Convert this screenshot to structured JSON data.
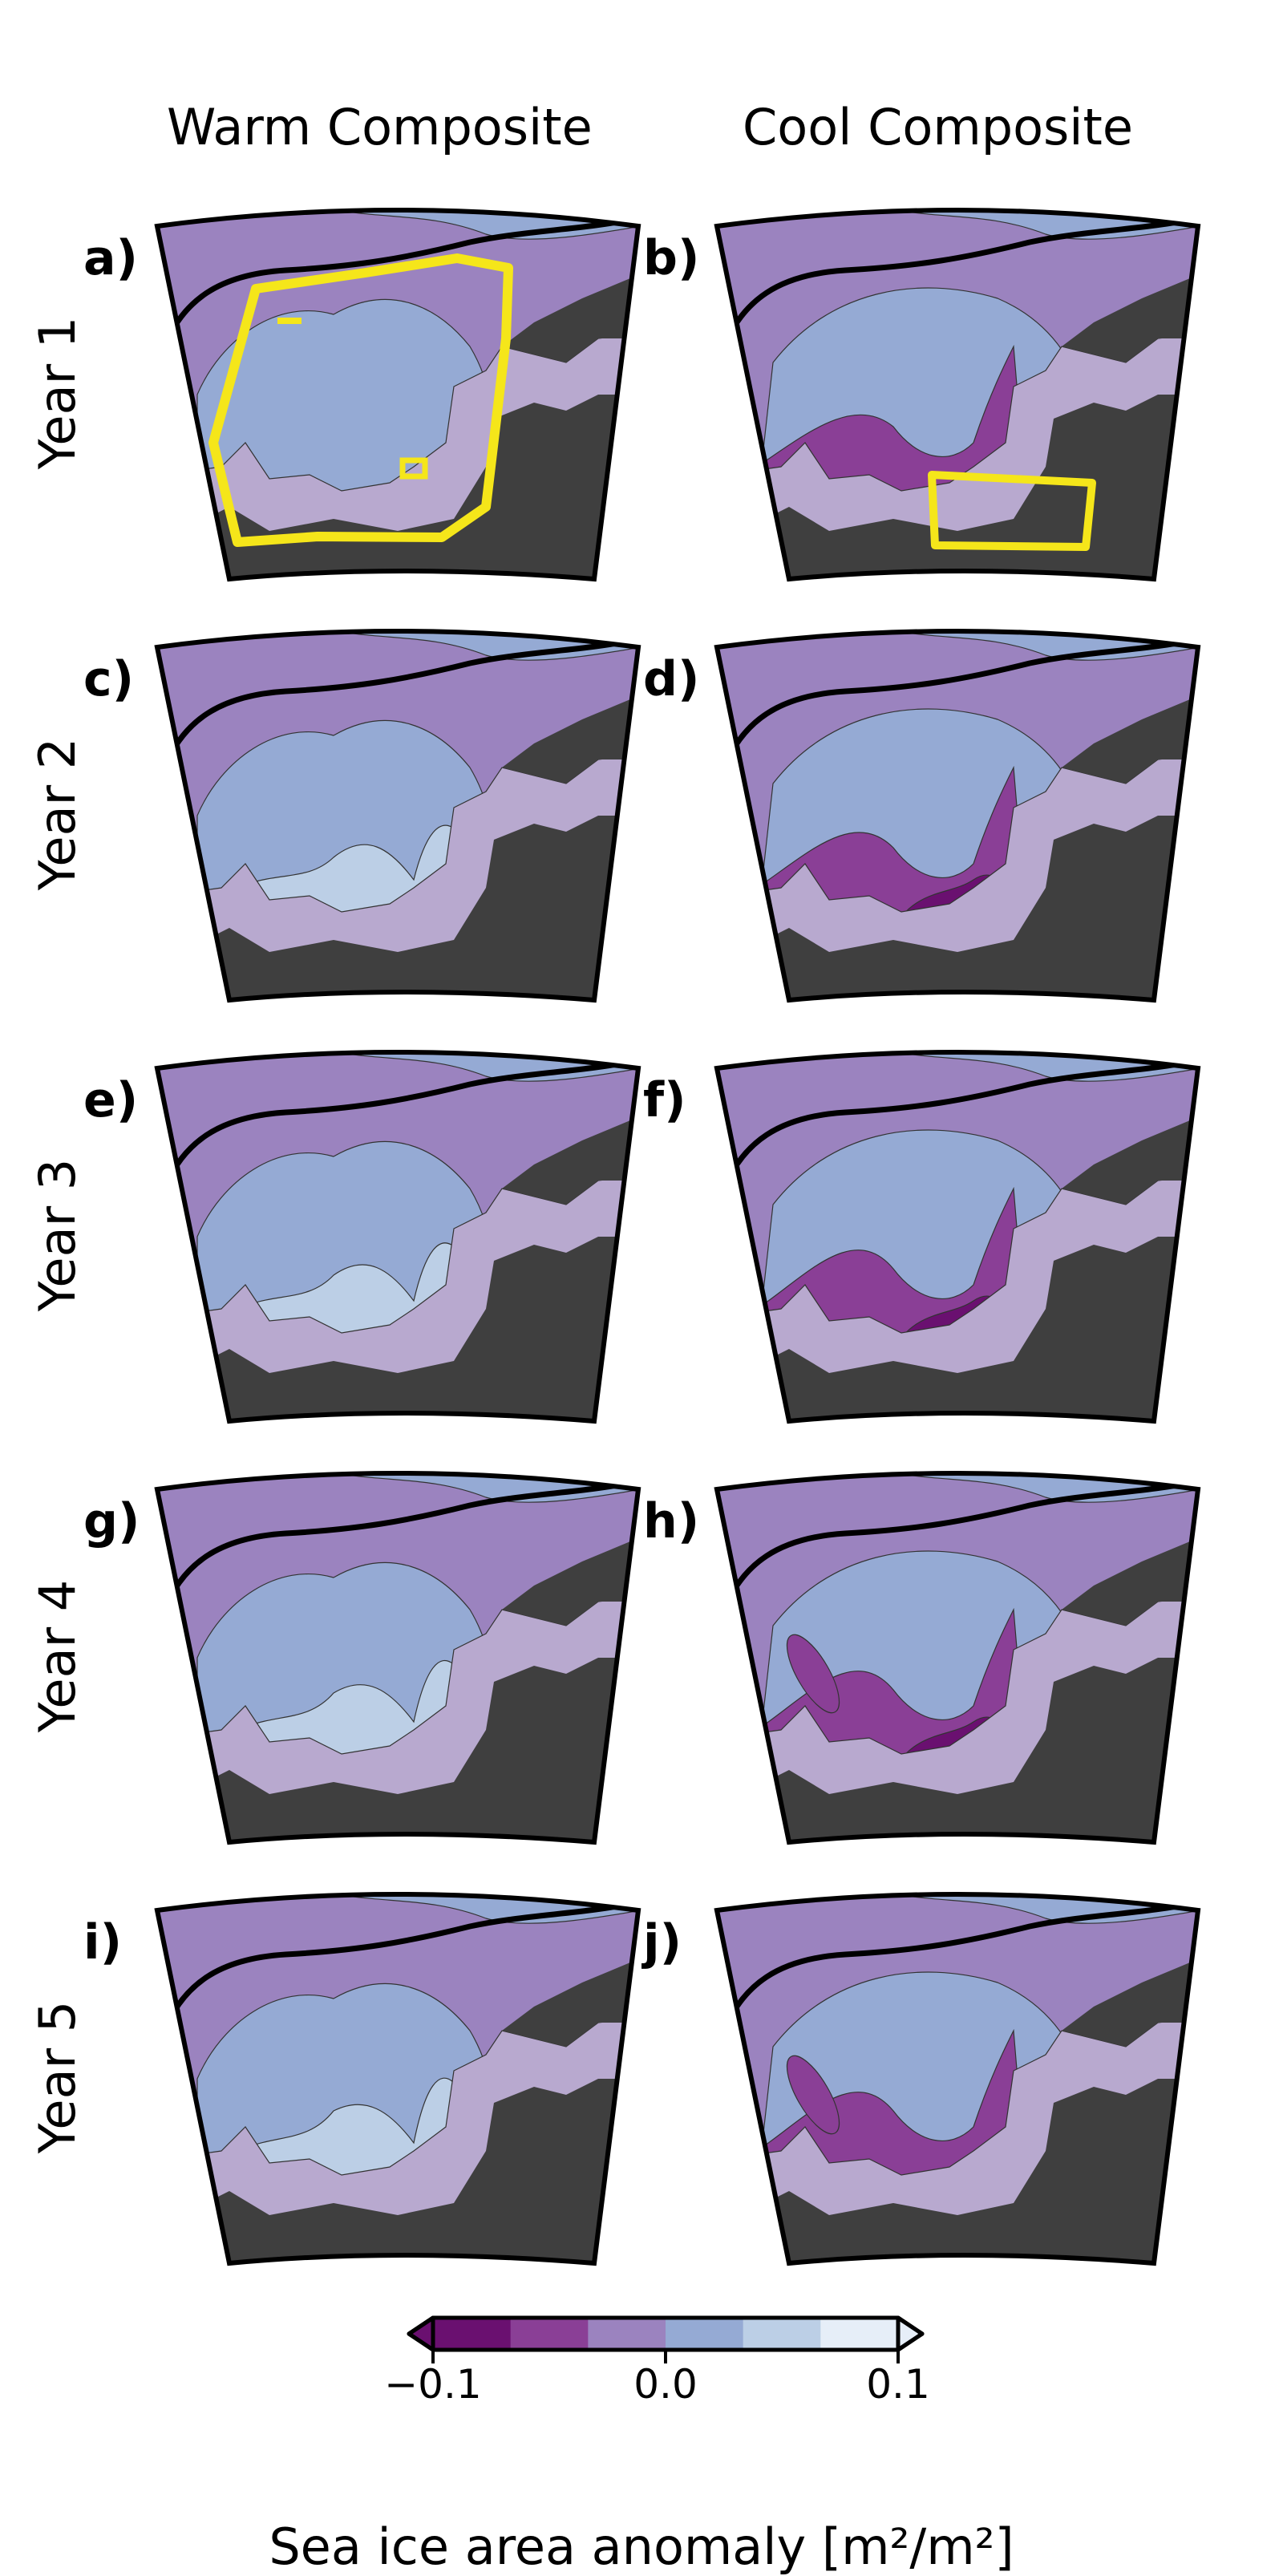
{
  "columns": [
    {
      "title": "Warm Composite"
    },
    {
      "title": "Cool Composite"
    }
  ],
  "rows": [
    {
      "label": "Year 1"
    },
    {
      "label": "Year 2"
    },
    {
      "label": "Year 3"
    },
    {
      "label": "Year 4"
    },
    {
      "label": "Year 5"
    }
  ],
  "panels": [
    {
      "id": "a)",
      "composite": "warm",
      "year": 1,
      "highlight": "region-box"
    },
    {
      "id": "b)",
      "composite": "cool",
      "year": 1,
      "highlight": "small-box"
    },
    {
      "id": "c)",
      "composite": "warm",
      "year": 2
    },
    {
      "id": "d)",
      "composite": "cool",
      "year": 2
    },
    {
      "id": "e)",
      "composite": "warm",
      "year": 3
    },
    {
      "id": "f)",
      "composite": "cool",
      "year": 3
    },
    {
      "id": "g)",
      "composite": "warm",
      "year": 4
    },
    {
      "id": "h)",
      "composite": "cool",
      "year": 4
    },
    {
      "id": "i)",
      "composite": "warm",
      "year": 5
    },
    {
      "id": "j)",
      "composite": "cool",
      "year": 5
    }
  ],
  "colorbar": {
    "label": "Sea ice area anomaly [m²/m²]",
    "ticks": [
      "−0.1",
      "0.0",
      "0.1"
    ],
    "min": -0.1,
    "max": 0.1,
    "levels": [
      "#6a1070",
      "#8a3f96",
      "#9b83bf",
      "#95aad4",
      "#bccfe6",
      "#e6eef8"
    ],
    "extend": "both"
  },
  "colors": {
    "land": "#3f3f3f",
    "land_ice": "#b8a9cf",
    "highlight": "#f5e61a",
    "outline": "#000000"
  }
}
